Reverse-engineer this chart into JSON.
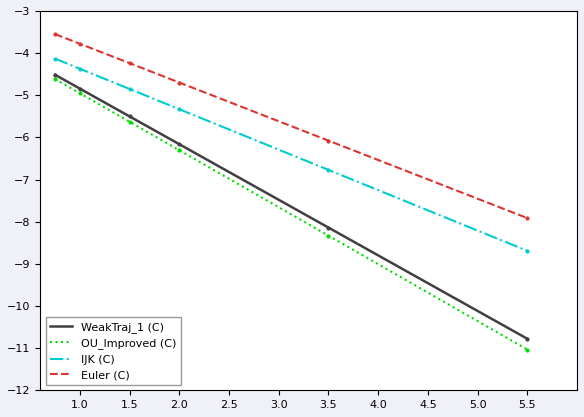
{
  "xlim": [
    0.6,
    6.0
  ],
  "ylim": [
    -12,
    -3
  ],
  "xticks": [
    1.0,
    1.5,
    2.0,
    2.5,
    3.0,
    3.5,
    4.0,
    4.5,
    5.0,
    5.5
  ],
  "yticks": [
    -12,
    -11,
    -10,
    -9,
    -8,
    -7,
    -6,
    -5,
    -4,
    -3
  ],
  "lines": {
    "WeakTraj_1": {
      "x": [
        0.75,
        1.0,
        1.5,
        2.0,
        3.5,
        5.5
      ],
      "y": [
        -4.72,
        -4.95,
        -5.42,
        -5.95,
        -7.95,
        -10.95
      ],
      "color": "#404040",
      "linestyle": "-",
      "linewidth": 1.8,
      "marker": ".",
      "markersize": 4,
      "label": "WeakTraj_1 (C)"
    },
    "OU_Improved": {
      "x": [
        0.75,
        1.0,
        1.5,
        2.0,
        3.5,
        5.5
      ],
      "y": [
        -4.82,
        -5.05,
        -5.55,
        -6.1,
        -8.15,
        -11.2
      ],
      "color": "#00dd00",
      "linestyle": ":",
      "linewidth": 1.5,
      "marker": ".",
      "markersize": 4,
      "label": "OU_Improved (C)"
    },
    "IJK": {
      "x": [
        0.75,
        1.0,
        1.5,
        2.0,
        3.5,
        5.5
      ],
      "y": [
        -4.18,
        -4.4,
        -4.82,
        -5.28,
        -6.75,
        -8.72
      ],
      "color": "#00cccc",
      "linestyle": "-.",
      "linewidth": 1.5,
      "marker": ".",
      "markersize": 4,
      "label": "IJK (C)"
    },
    "Euler": {
      "x": [
        0.75,
        1.0,
        1.5,
        2.0,
        3.5,
        5.5
      ],
      "y": [
        -3.55,
        -3.78,
        -4.22,
        -4.68,
        -6.15,
        -7.88
      ],
      "color": "#dd3333",
      "linestyle": "--",
      "linewidth": 1.5,
      "marker": ".",
      "markersize": 4,
      "label": "Euler (C)"
    }
  },
  "legend_loc": "lower left",
  "legend_fontsize": 8,
  "background_color": "#ffffff",
  "figure_color": "#f0f0f8"
}
